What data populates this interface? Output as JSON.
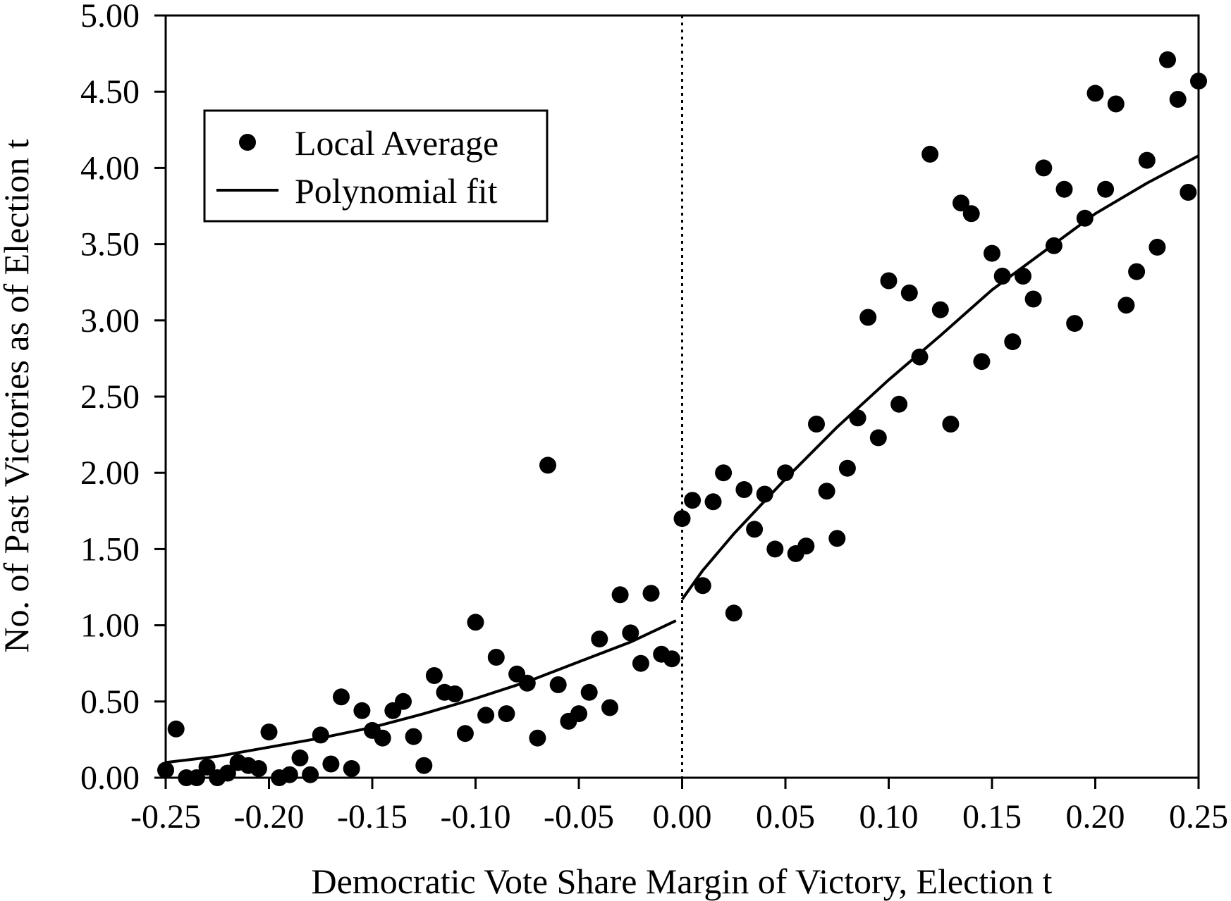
{
  "chart_data": {
    "type": "scatter",
    "xlabel": "Democratic Vote Share Margin of Victory, Election t",
    "ylabel": "No. of  Past Victories as of  Election t",
    "xlim": [
      -0.25,
      0.25
    ],
    "ylim": [
      0,
      5
    ],
    "x_ticks": [
      "-0.25",
      "-0.20",
      "-0.15",
      "-0.10",
      "-0.05",
      "0.00",
      "0.05",
      "0.10",
      "0.15",
      "0.20",
      "0.25"
    ],
    "y_ticks": [
      "0.00",
      "0.50",
      "1.00",
      "1.50",
      "2.00",
      "2.50",
      "3.00",
      "3.50",
      "4.00",
      "4.50",
      "5.00"
    ],
    "grid": false,
    "threshold_line": {
      "x": 0,
      "style": "dotted"
    },
    "legend": {
      "placement": "top-left",
      "items": [
        {
          "label": "Local Average",
          "marker": "dot"
        },
        {
          "label": "Polynomial fit",
          "marker": "line"
        }
      ]
    },
    "series": [
      {
        "name": "Local Average",
        "kind": "points",
        "points": [
          [
            -0.25,
            0.05
          ],
          [
            -0.245,
            0.32
          ],
          [
            -0.24,
            0.0
          ],
          [
            -0.235,
            0.0
          ],
          [
            -0.23,
            0.07
          ],
          [
            -0.225,
            0.0
          ],
          [
            -0.22,
            0.03
          ],
          [
            -0.215,
            0.1
          ],
          [
            -0.21,
            0.08
          ],
          [
            -0.205,
            0.06
          ],
          [
            -0.2,
            0.3
          ],
          [
            -0.195,
            0.0
          ],
          [
            -0.19,
            0.02
          ],
          [
            -0.185,
            0.13
          ],
          [
            -0.18,
            0.02
          ],
          [
            -0.175,
            0.28
          ],
          [
            -0.17,
            0.09
          ],
          [
            -0.165,
            0.53
          ],
          [
            -0.16,
            0.06
          ],
          [
            -0.155,
            0.44
          ],
          [
            -0.15,
            0.31
          ],
          [
            -0.145,
            0.26
          ],
          [
            -0.14,
            0.44
          ],
          [
            -0.135,
            0.5
          ],
          [
            -0.13,
            0.27
          ],
          [
            -0.125,
            0.08
          ],
          [
            -0.12,
            0.67
          ],
          [
            -0.115,
            0.56
          ],
          [
            -0.11,
            0.55
          ],
          [
            -0.105,
            0.29
          ],
          [
            -0.1,
            1.02
          ],
          [
            -0.095,
            0.41
          ],
          [
            -0.09,
            0.79
          ],
          [
            -0.085,
            0.42
          ],
          [
            -0.08,
            0.68
          ],
          [
            -0.075,
            0.62
          ],
          [
            -0.07,
            0.26
          ],
          [
            -0.065,
            2.05
          ],
          [
            -0.06,
            0.61
          ],
          [
            -0.055,
            0.37
          ],
          [
            -0.05,
            0.42
          ],
          [
            -0.045,
            0.56
          ],
          [
            -0.04,
            0.91
          ],
          [
            -0.035,
            0.46
          ],
          [
            -0.03,
            1.2
          ],
          [
            -0.025,
            0.95
          ],
          [
            -0.02,
            0.75
          ],
          [
            -0.015,
            1.21
          ],
          [
            -0.01,
            0.81
          ],
          [
            -0.005,
            0.78
          ],
          [
            0.0,
            1.7
          ],
          [
            0.005,
            1.82
          ],
          [
            0.01,
            1.26
          ],
          [
            0.015,
            1.81
          ],
          [
            0.02,
            2.0
          ],
          [
            0.025,
            1.08
          ],
          [
            0.03,
            1.89
          ],
          [
            0.035,
            1.63
          ],
          [
            0.04,
            1.86
          ],
          [
            0.045,
            1.5
          ],
          [
            0.05,
            2.0
          ],
          [
            0.055,
            1.47
          ],
          [
            0.06,
            1.52
          ],
          [
            0.065,
            2.32
          ],
          [
            0.07,
            1.88
          ],
          [
            0.075,
            1.57
          ],
          [
            0.08,
            2.03
          ],
          [
            0.085,
            2.36
          ],
          [
            0.09,
            3.02
          ],
          [
            0.095,
            2.23
          ],
          [
            0.1,
            3.26
          ],
          [
            0.105,
            2.45
          ],
          [
            0.11,
            3.18
          ],
          [
            0.115,
            2.76
          ],
          [
            0.12,
            4.09
          ],
          [
            0.125,
            3.07
          ],
          [
            0.13,
            2.32
          ],
          [
            0.135,
            3.77
          ],
          [
            0.14,
            3.7
          ],
          [
            0.145,
            2.73
          ],
          [
            0.15,
            3.44
          ],
          [
            0.155,
            3.29
          ],
          [
            0.16,
            2.86
          ],
          [
            0.165,
            3.29
          ],
          [
            0.17,
            3.14
          ],
          [
            0.175,
            4.0
          ],
          [
            0.18,
            3.49
          ],
          [
            0.185,
            3.86
          ],
          [
            0.19,
            2.98
          ],
          [
            0.195,
            3.67
          ],
          [
            0.2,
            4.49
          ],
          [
            0.205,
            3.86
          ],
          [
            0.21,
            4.42
          ],
          [
            0.215,
            3.1
          ],
          [
            0.22,
            3.32
          ],
          [
            0.225,
            4.05
          ],
          [
            0.23,
            3.48
          ],
          [
            0.235,
            4.71
          ],
          [
            0.24,
            4.45
          ],
          [
            0.245,
            3.84
          ],
          [
            0.25,
            4.57
          ]
        ]
      },
      {
        "name": "Polynomial fit",
        "kind": "line",
        "segments": [
          [
            [
              -0.25,
              0.1
            ],
            [
              -0.225,
              0.14
            ],
            [
              -0.2,
              0.2
            ],
            [
              -0.175,
              0.26
            ],
            [
              -0.15,
              0.33
            ],
            [
              -0.125,
              0.42
            ],
            [
              -0.1,
              0.52
            ],
            [
              -0.075,
              0.63
            ],
            [
              -0.05,
              0.76
            ],
            [
              -0.025,
              0.89
            ],
            [
              -0.003,
              1.03
            ]
          ],
          [
            [
              0.0,
              1.17
            ],
            [
              0.01,
              1.36
            ],
            [
              0.025,
              1.6
            ],
            [
              0.05,
              1.96
            ],
            [
              0.075,
              2.3
            ],
            [
              0.1,
              2.61
            ],
            [
              0.125,
              2.9
            ],
            [
              0.15,
              3.2
            ],
            [
              0.175,
              3.45
            ],
            [
              0.2,
              3.7
            ],
            [
              0.225,
              3.9
            ],
            [
              0.25,
              4.08
            ]
          ]
        ]
      }
    ]
  }
}
